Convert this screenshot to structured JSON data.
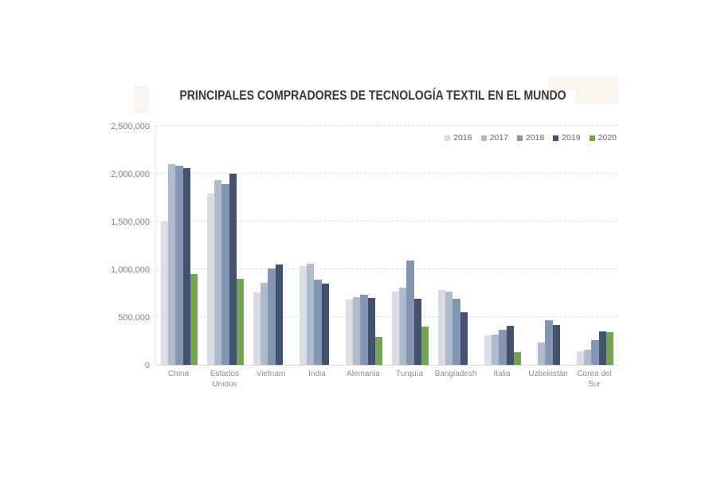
{
  "chart_data": {
    "type": "bar",
    "title": "PRINCIPALES COMPRADORES DE TECNOLOGÍA TEXTIL EN EL MUNDO",
    "categories": [
      "China",
      "Estados Unidos",
      "Vietnam",
      "India",
      "Alemania",
      "Turquía",
      "Bangladesh",
      "Italia",
      "Uzbekistán",
      "Corea del Sur"
    ],
    "series": [
      {
        "name": "2016",
        "color": "#d8dde6",
        "values": [
          1500000,
          1790000,
          760000,
          1030000,
          680000,
          770000,
          780000,
          310000,
          null,
          140000
        ]
      },
      {
        "name": "2017",
        "color": "#aebccd",
        "values": [
          2100000,
          1930000,
          860000,
          1060000,
          710000,
          810000,
          770000,
          320000,
          230000,
          160000
        ]
      },
      {
        "name": "2018",
        "color": "#8297b3",
        "values": [
          2080000,
          1890000,
          1010000,
          890000,
          730000,
          1090000,
          690000,
          365000,
          470000,
          260000
        ]
      },
      {
        "name": "2019",
        "color": "#42526c",
        "values": [
          2060000,
          2000000,
          1050000,
          850000,
          700000,
          690000,
          550000,
          410000,
          420000,
          350000
        ]
      },
      {
        "name": "2020",
        "color": "#70a74e",
        "values": [
          950000,
          900000,
          null,
          null,
          290000,
          400000,
          null,
          130000,
          null,
          340000
        ]
      }
    ],
    "xlabel": "",
    "ylabel": "",
    "ylim": [
      0,
      2500000
    ],
    "ytick_interval": 500000,
    "ytick_labels": [
      "0",
      "500,000",
      "1,000,000",
      "1,500,000",
      "2,000,000",
      "2,500,000"
    ],
    "grid": "horizontal-dashed",
    "legend_position": "top-right",
    "title_color": "#3e3734",
    "tick_color": "#7f7f7f"
  }
}
